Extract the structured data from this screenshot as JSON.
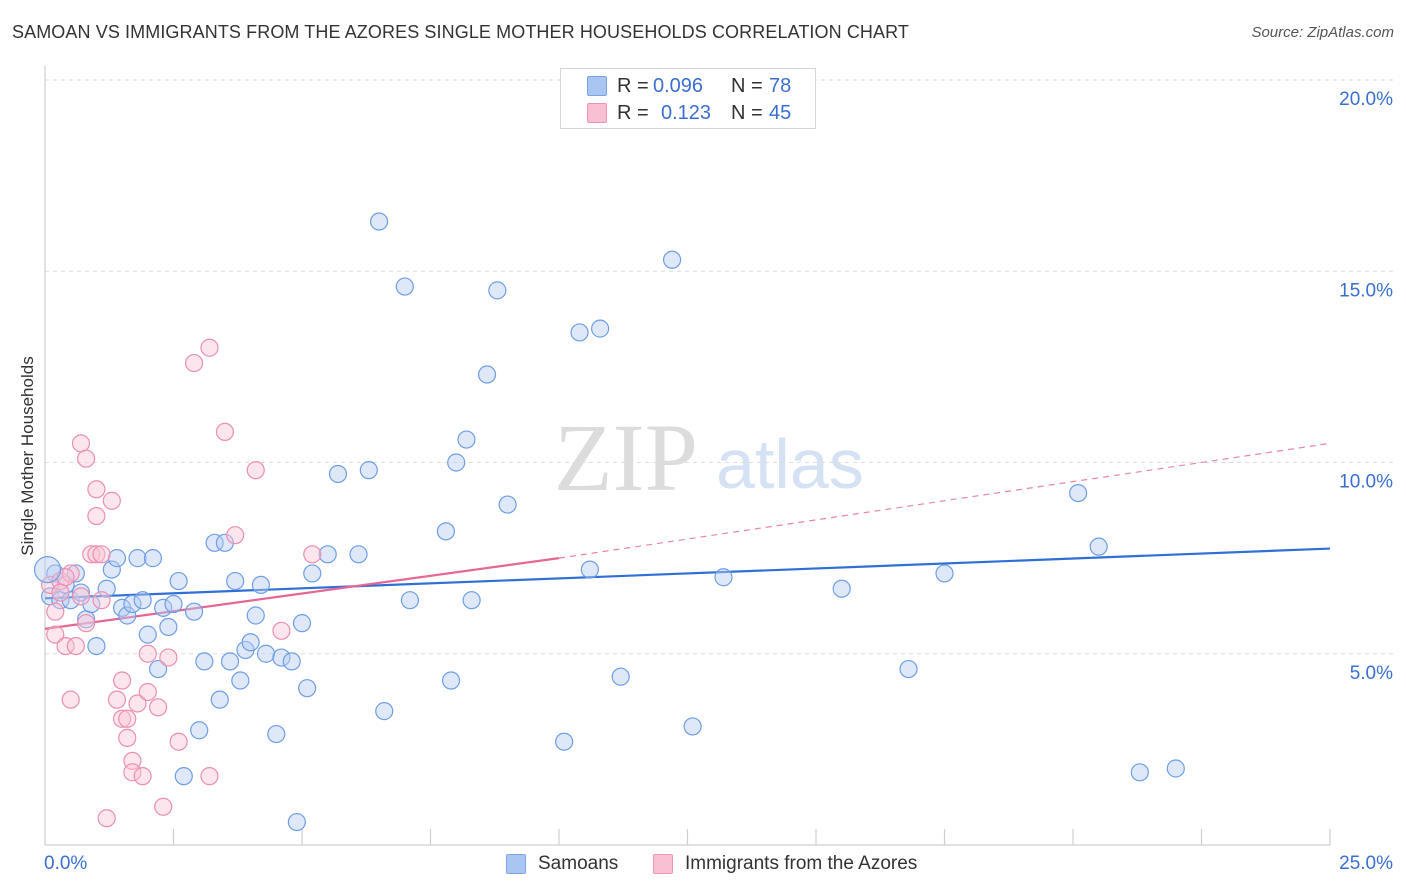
{
  "title": "SAMOAN VS IMMIGRANTS FROM THE AZORES SINGLE MOTHER HOUSEHOLDS CORRELATION CHART",
  "source": "Source: ZipAtlas.com",
  "watermark": {
    "part1": "ZIP",
    "part2": "atlas"
  },
  "stats": [
    {
      "r_label": "R =",
      "r_value": "0.096",
      "n_label": "N =",
      "n_value": "78",
      "color": "#a9c6f2",
      "border": "#7aa3e0"
    },
    {
      "r_label": "R =",
      "r_value": "0.123",
      "n_label": "N =",
      "n_value": "45",
      "color": "#f8c0d2",
      "border": "#ec94b2"
    }
  ],
  "legend": [
    {
      "label": "Samoans",
      "color": "#a9c6f2",
      "border": "#7aa3e0"
    },
    {
      "label": "Immigrants from the Azores",
      "color": "#f8c0d2",
      "border": "#ec94b2"
    }
  ],
  "chart_data": {
    "type": "scatter",
    "title": "SAMOAN VS IMMIGRANTS FROM THE AZORES SINGLE MOTHER HOUSEHOLDS CORRELATION CHART",
    "xlabel": "",
    "ylabel": "Single Mother Households",
    "xlim": [
      0,
      25
    ],
    "ylim": [
      0,
      20
    ],
    "x_tick_labels": [
      "0.0%",
      "25.0%"
    ],
    "y_ticks": [
      5,
      10,
      15,
      20
    ],
    "y_tick_labels": [
      "5.0%",
      "10.0%",
      "15.0%",
      "20.0%"
    ],
    "grid": "horizontal dashed",
    "legend_position": "bottom-center",
    "series": [
      {
        "name": "Samoans",
        "color": "#6f9ee6",
        "fill": "#b5cdf2",
        "trend": {
          "x": [
            0,
            25
          ],
          "y": [
            6.45,
            7.75
          ],
          "color": "#2f6fd6",
          "dashed_extension": false
        },
        "points": [
          [
            0.1,
            6.5
          ],
          [
            0.2,
            7.1
          ],
          [
            0.3,
            6.4
          ],
          [
            0.4,
            6.8
          ],
          [
            0.5,
            6.4
          ],
          [
            0.6,
            7.1
          ],
          [
            0.7,
            6.6
          ],
          [
            0.8,
            5.9
          ],
          [
            0.9,
            6.3
          ],
          [
            1.0,
            5.2
          ],
          [
            1.2,
            6.7
          ],
          [
            1.3,
            7.2
          ],
          [
            1.4,
            7.5
          ],
          [
            1.5,
            6.2
          ],
          [
            1.6,
            6.0
          ],
          [
            1.7,
            6.3
          ],
          [
            1.8,
            7.5
          ],
          [
            1.9,
            6.4
          ],
          [
            2.0,
            5.5
          ],
          [
            2.1,
            7.5
          ],
          [
            2.2,
            4.6
          ],
          [
            2.3,
            6.2
          ],
          [
            2.4,
            5.7
          ],
          [
            2.5,
            6.3
          ],
          [
            2.6,
            6.9
          ],
          [
            2.7,
            1.8
          ],
          [
            2.9,
            6.1
          ],
          [
            3.0,
            3.0
          ],
          [
            3.1,
            4.8
          ],
          [
            3.3,
            7.9
          ],
          [
            3.4,
            3.8
          ],
          [
            3.5,
            7.9
          ],
          [
            3.6,
            4.8
          ],
          [
            3.7,
            6.9
          ],
          [
            3.8,
            4.3
          ],
          [
            3.9,
            5.1
          ],
          [
            4.0,
            5.3
          ],
          [
            4.1,
            6.0
          ],
          [
            4.2,
            6.8
          ],
          [
            4.3,
            5.0
          ],
          [
            4.5,
            2.9
          ],
          [
            4.6,
            4.9
          ],
          [
            4.8,
            4.8
          ],
          [
            4.9,
            0.6
          ],
          [
            5.0,
            5.8
          ],
          [
            5.1,
            4.1
          ],
          [
            5.2,
            7.1
          ],
          [
            5.5,
            7.6
          ],
          [
            5.7,
            9.7
          ],
          [
            6.1,
            7.6
          ],
          [
            6.3,
            9.8
          ],
          [
            6.5,
            16.3
          ],
          [
            6.6,
            3.5
          ],
          [
            7.0,
            14.6
          ],
          [
            7.1,
            6.4
          ],
          [
            7.8,
            8.2
          ],
          [
            7.9,
            4.3
          ],
          [
            8.0,
            10.0
          ],
          [
            8.2,
            10.6
          ],
          [
            8.3,
            6.4
          ],
          [
            8.8,
            14.5
          ],
          [
            8.6,
            12.3
          ],
          [
            9.0,
            8.9
          ],
          [
            10.1,
            2.7
          ],
          [
            10.4,
            13.4
          ],
          [
            10.6,
            7.2
          ],
          [
            10.8,
            13.5
          ],
          [
            11.2,
            4.4
          ],
          [
            12.2,
            15.3
          ],
          [
            12.6,
            3.1
          ],
          [
            13.2,
            7.0
          ],
          [
            15.5,
            6.7
          ],
          [
            16.8,
            4.6
          ],
          [
            17.5,
            7.1
          ],
          [
            20.1,
            9.2
          ],
          [
            20.5,
            7.8
          ],
          [
            21.3,
            1.9
          ],
          [
            22.0,
            2.0
          ]
        ]
      },
      {
        "name": "Immigrants from the Azores",
        "color": "#ec8fb0",
        "fill": "#f8c6d7",
        "trend": {
          "x": [
            0,
            10
          ],
          "y": [
            5.65,
            7.5
          ],
          "color": "#e46794",
          "dashed_extension": true,
          "extension_to": [
            25,
            10.5
          ]
        },
        "points": [
          [
            0.1,
            6.8
          ],
          [
            0.2,
            6.1
          ],
          [
            0.2,
            5.5
          ],
          [
            0.3,
            6.9
          ],
          [
            0.4,
            5.2
          ],
          [
            0.5,
            7.1
          ],
          [
            0.4,
            7.0
          ],
          [
            0.5,
            3.8
          ],
          [
            0.6,
            5.2
          ],
          [
            0.7,
            6.5
          ],
          [
            0.8,
            5.8
          ],
          [
            0.7,
            10.5
          ],
          [
            0.8,
            10.1
          ],
          [
            0.9,
            7.6
          ],
          [
            1.0,
            7.6
          ],
          [
            1.0,
            8.6
          ],
          [
            1.0,
            9.3
          ],
          [
            1.1,
            6.4
          ],
          [
            1.1,
            7.6
          ],
          [
            1.2,
            0.7
          ],
          [
            1.3,
            9.0
          ],
          [
            1.4,
            3.8
          ],
          [
            1.5,
            3.3
          ],
          [
            1.5,
            4.3
          ],
          [
            1.6,
            3.3
          ],
          [
            1.6,
            2.8
          ],
          [
            1.7,
            2.2
          ],
          [
            1.7,
            1.9
          ],
          [
            1.8,
            3.7
          ],
          [
            1.9,
            1.8
          ],
          [
            2.0,
            5.0
          ],
          [
            2.0,
            4.0
          ],
          [
            2.2,
            3.6
          ],
          [
            2.3,
            1.0
          ],
          [
            2.4,
            4.9
          ],
          [
            2.6,
            2.7
          ],
          [
            2.9,
            12.6
          ],
          [
            3.2,
            1.8
          ],
          [
            3.2,
            13.0
          ],
          [
            3.5,
            10.8
          ],
          [
            3.7,
            8.1
          ],
          [
            4.1,
            9.8
          ],
          [
            4.6,
            5.6
          ],
          [
            5.2,
            7.6
          ],
          [
            0.3,
            6.6
          ]
        ]
      }
    ]
  }
}
